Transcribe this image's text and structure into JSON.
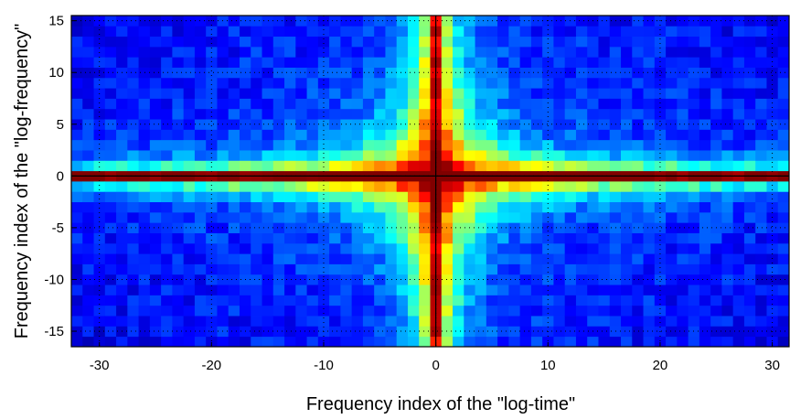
{
  "chart_data": {
    "type": "heatmap",
    "title": "",
    "xlabel": "Frequency index of the \"log-time\"",
    "ylabel": "Frequency index of the \"log-frequency\"",
    "xlim": [
      -32.5,
      31.5
    ],
    "ylim": [
      -16.5,
      15.5
    ],
    "x_ticks": [
      -30,
      -20,
      -10,
      0,
      10,
      20,
      30
    ],
    "x_tick_labels": [
      "-30",
      "-20",
      "-10",
      "0",
      "10",
      "20",
      "30"
    ],
    "y_ticks": [
      15,
      10,
      5,
      0,
      -5,
      -10,
      -15
    ],
    "y_tick_labels": [
      "15",
      "10",
      "5",
      "0",
      "-5",
      "-10",
      "-15"
    ],
    "x_range": [
      -32,
      31
    ],
    "y_range": [
      -16,
      15
    ],
    "colormap": "jet",
    "value_range": [
      0,
      1
    ],
    "grid": "dotted",
    "crosshair_at": [
      0,
      0
    ],
    "colors": {
      "axis": "#000000",
      "grid": "#000000",
      "crosshair": "#000000"
    }
  }
}
